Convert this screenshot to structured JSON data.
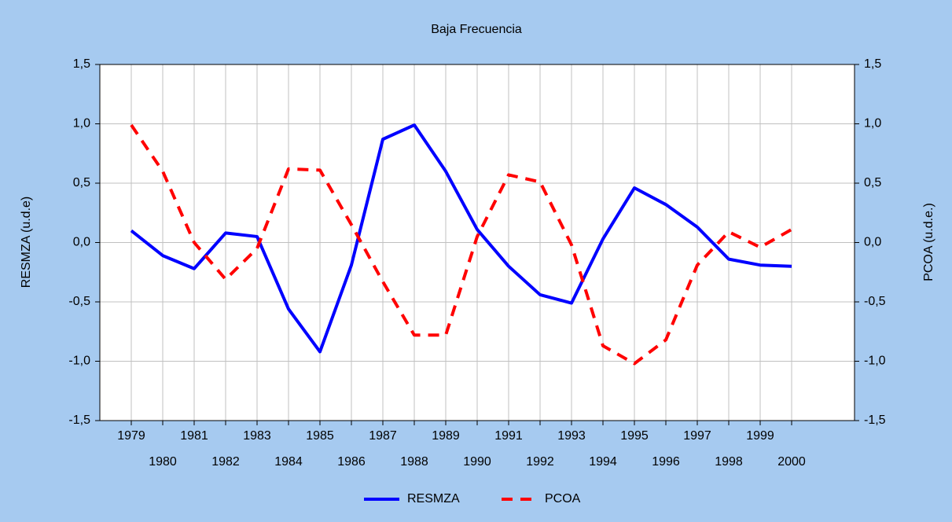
{
  "chart_data": {
    "type": "line",
    "title": "Baja Frecuencia",
    "y_label": "RESMZA (u.d.e)",
    "y2_label": "PCOA (u.d.e.)",
    "x": [
      1979,
      1980,
      1981,
      1982,
      1983,
      1984,
      1985,
      1986,
      1987,
      1988,
      1989,
      1990,
      1991,
      1992,
      1993,
      1994,
      1995,
      1996,
      1997,
      1998,
      1999,
      2000
    ],
    "xlim": [
      1978,
      2002
    ],
    "xticks": [
      1979,
      1980,
      1981,
      1982,
      1983,
      1984,
      1985,
      1986,
      1987,
      1988,
      1989,
      1990,
      1991,
      1992,
      1993,
      1994,
      1995,
      1996,
      1997,
      1998,
      1999,
      2000
    ],
    "ylim": [
      -1.5,
      1.5
    ],
    "yticks": [
      {
        "value": -1.5,
        "label": "-1,5"
      },
      {
        "value": -1,
        "label": "-1,0"
      },
      {
        "value": -0.5,
        "label": "-0,5"
      },
      {
        "value": 0,
        "label": "0,0"
      },
      {
        "value": 0.5,
        "label": "0,5"
      },
      {
        "value": 1,
        "label": "1,0"
      },
      {
        "value": 1.5,
        "label": "1,5"
      }
    ],
    "y2lim": [
      -1.5,
      1.5
    ],
    "y2ticks": [
      {
        "value": -1.5,
        "label": "-1,5"
      },
      {
        "value": -1,
        "label": "-1,0"
      },
      {
        "value": -0.5,
        "label": "-0,5"
      },
      {
        "value": 0,
        "label": "0,0"
      },
      {
        "value": 0.5,
        "label": "0,5"
      },
      {
        "value": 1,
        "label": "1,0"
      },
      {
        "value": 1.5,
        "label": "1,5"
      }
    ],
    "grid": true,
    "legend": "bottom",
    "series": [
      {
        "name": "RESMZA",
        "color": "#0000ff",
        "dash": false,
        "values": [
          0.1,
          -0.11,
          -0.22,
          0.08,
          0.05,
          -0.56,
          -0.92,
          -0.19,
          0.87,
          0.99,
          0.6,
          0.11,
          -0.2,
          -0.44,
          -0.51,
          0.03,
          0.46,
          0.32,
          0.13,
          -0.14,
          -0.19,
          -0.2
        ]
      },
      {
        "name": "PCOA",
        "color": "#ff0000",
        "dash": true,
        "axis": "y2",
        "values": [
          0.99,
          0.6,
          0.0,
          -0.31,
          -0.05,
          0.62,
          0.61,
          0.15,
          -0.33,
          -0.78,
          -0.78,
          0.05,
          0.57,
          0.51,
          -0.02,
          -0.87,
          -1.02,
          -0.82,
          -0.19,
          0.09,
          -0.04,
          0.11
        ]
      }
    ]
  }
}
